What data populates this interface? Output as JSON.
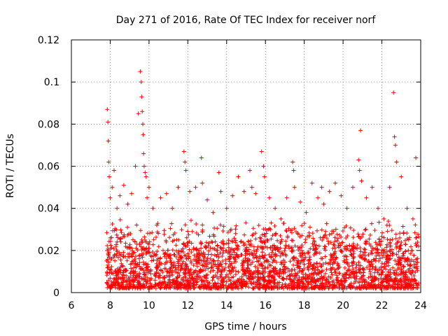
{
  "chart_data": {
    "type": "scatter",
    "title": "Day 271 of 2016, Rate Of TEC Index for receiver norf",
    "xlabel": "GPS time / hours",
    "ylabel": "ROTI / TECUs",
    "xlim": [
      6,
      24
    ],
    "ylim": [
      0,
      0.12
    ],
    "xticks": [
      6,
      8,
      10,
      12,
      14,
      16,
      18,
      20,
      22,
      24
    ],
    "xtick_labels": [
      "6",
      "8",
      "10",
      "12",
      "14",
      "16",
      "18",
      "20",
      "22",
      "24"
    ],
    "yticks": [
      0,
      0.02,
      0.04,
      0.06,
      0.08,
      0.1,
      0.12
    ],
    "ytick_labels": [
      "0",
      "0.02",
      "0.04",
      "0.06",
      "0.08",
      "0.1",
      "0.12"
    ],
    "grid": true,
    "marker": "+",
    "color": "#ff0000",
    "series": [
      {
        "name": "ROTI",
        "x": [
          7.85,
          7.88,
          7.9,
          7.92,
          7.95,
          8.0,
          8.1,
          8.2,
          8.35,
          8.5,
          8.7,
          8.9,
          9.1,
          9.3,
          9.45,
          9.55,
          9.6,
          9.62,
          9.65,
          9.68,
          9.7,
          9.72,
          9.75,
          9.8,
          9.85,
          9.9,
          10.0,
          10.2,
          10.4,
          10.6,
          10.9,
          11.2,
          11.5,
          11.8,
          11.85,
          11.9,
          12.1,
          12.4,
          12.7,
          12.75,
          13.0,
          13.3,
          13.6,
          13.7,
          14.0,
          14.3,
          14.6,
          14.9,
          15.2,
          15.3,
          15.5,
          15.8,
          15.9,
          15.95,
          16.2,
          16.5,
          16.8,
          17.1,
          17.4,
          17.45,
          17.5,
          17.8,
          18.1,
          18.4,
          18.7,
          18.9,
          19.0,
          19.3,
          19.6,
          19.9,
          20.2,
          20.5,
          20.8,
          20.85,
          20.9,
          20.95,
          21.2,
          21.5,
          21.8,
          22.1,
          22.4,
          22.6,
          22.65,
          22.7,
          22.75,
          23.0,
          23.3,
          23.6,
          23.75
        ],
        "y": [
          0.087,
          0.081,
          0.072,
          0.062,
          0.055,
          0.045,
          0.05,
          0.058,
          0.04,
          0.046,
          0.051,
          0.042,
          0.047,
          0.06,
          0.085,
          0.105,
          0.1,
          0.093,
          0.086,
          0.08,
          0.075,
          0.066,
          0.06,
          0.057,
          0.055,
          0.045,
          0.05,
          0.04,
          0.032,
          0.045,
          0.047,
          0.04,
          0.05,
          0.067,
          0.062,
          0.058,
          0.048,
          0.05,
          0.064,
          0.052,
          0.044,
          0.038,
          0.057,
          0.048,
          0.04,
          0.046,
          0.055,
          0.048,
          0.058,
          0.05,
          0.047,
          0.067,
          0.06,
          0.055,
          0.045,
          0.04,
          0.035,
          0.045,
          0.062,
          0.058,
          0.05,
          0.043,
          0.038,
          0.052,
          0.045,
          0.05,
          0.042,
          0.048,
          0.052,
          0.046,
          0.04,
          0.05,
          0.063,
          0.058,
          0.077,
          0.053,
          0.045,
          0.05,
          0.04,
          0.035,
          0.05,
          0.095,
          0.074,
          0.07,
          0.062,
          0.055,
          0.04,
          0.035,
          0.064
        ]
      }
    ],
    "bulk_bands": [
      {
        "x_start": 7.8,
        "x_end": 23.9,
        "y_min": 0.002,
        "y_max": 0.035,
        "note": "dense band of ROTI samples between roughly 0.002 and 0.035 TECU/min throughout the tracked period"
      }
    ]
  }
}
